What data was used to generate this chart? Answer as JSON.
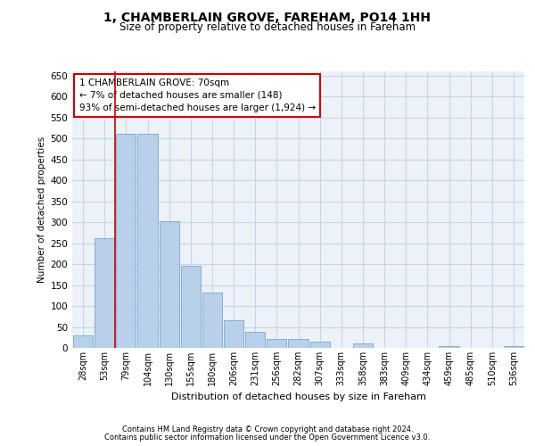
{
  "title": "1, CHAMBERLAIN GROVE, FAREHAM, PO14 1HH",
  "subtitle": "Size of property relative to detached houses in Fareham",
  "xlabel": "Distribution of detached houses by size in Fareham",
  "ylabel": "Number of detached properties",
  "categories": [
    "28sqm",
    "53sqm",
    "79sqm",
    "104sqm",
    "130sqm",
    "155sqm",
    "180sqm",
    "206sqm",
    "231sqm",
    "256sqm",
    "282sqm",
    "307sqm",
    "333sqm",
    "358sqm",
    "383sqm",
    "409sqm",
    "434sqm",
    "459sqm",
    "485sqm",
    "510sqm",
    "536sqm"
  ],
  "values": [
    30,
    262,
    512,
    510,
    302,
    196,
    132,
    65,
    38,
    22,
    22,
    15,
    0,
    10,
    0,
    0,
    0,
    5,
    0,
    0,
    5
  ],
  "bar_color": "#b8d0ea",
  "bar_edge_color": "#6699cc",
  "grid_color": "#c5d5e8",
  "background_color": "#edf2f9",
  "annotation_box_text": "1 CHAMBERLAIN GROVE: 70sqm\n← 7% of detached houses are smaller (148)\n93% of semi-detached houses are larger (1,924) →",
  "annotation_box_color": "#ffffff",
  "annotation_box_edge_color": "#cc0000",
  "vline_color": "#cc0000",
  "ylim": [
    0,
    660
  ],
  "yticks": [
    0,
    50,
    100,
    150,
    200,
    250,
    300,
    350,
    400,
    450,
    500,
    550,
    600,
    650
  ],
  "footer_line1": "Contains HM Land Registry data © Crown copyright and database right 2024.",
  "footer_line2": "Contains public sector information licensed under the Open Government Licence v3.0."
}
